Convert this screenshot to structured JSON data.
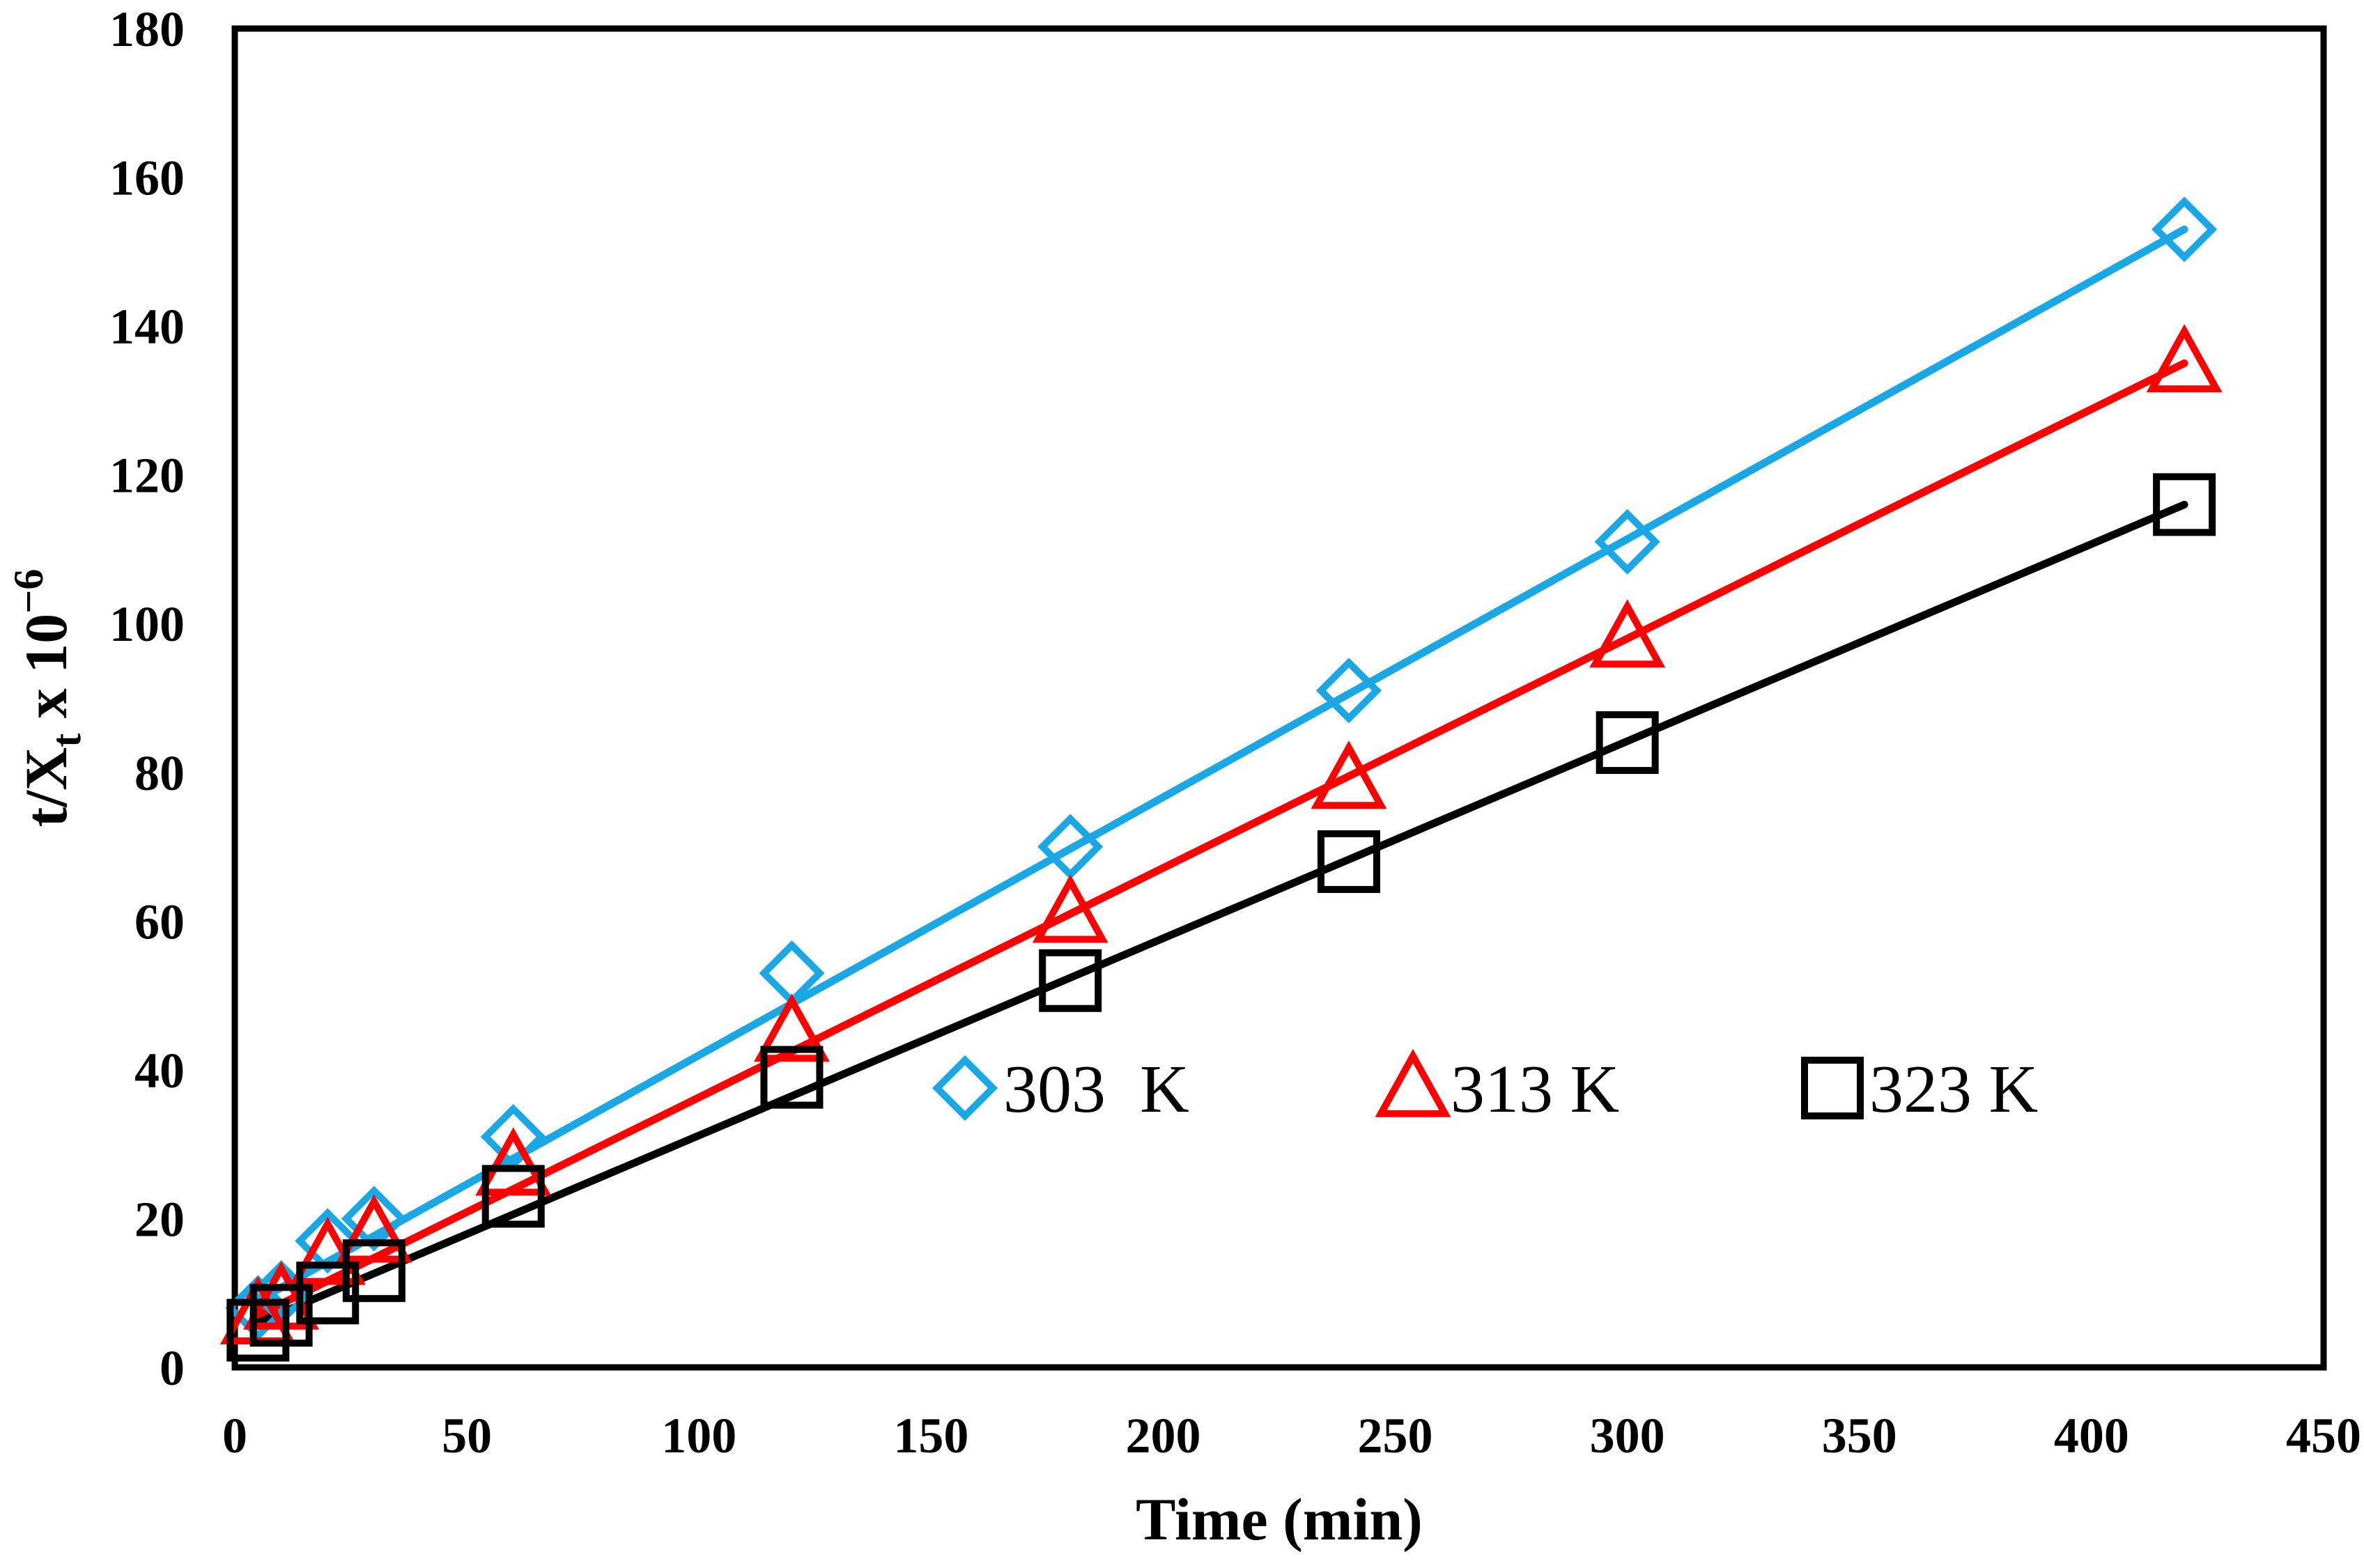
{
  "chart_data": {
    "type": "scatter",
    "title": "",
    "xlabel": "Time (min)",
    "ylabel_parts": {
      "base": "t/X",
      "sub": "t",
      "rest": " x 10",
      "sup": "−6"
    },
    "xlim": [
      0,
      450
    ],
    "ylim": [
      0,
      180
    ],
    "xticks": [
      0,
      50,
      100,
      150,
      200,
      250,
      300,
      350,
      400,
      450
    ],
    "yticks": [
      0,
      20,
      40,
      60,
      80,
      100,
      120,
      140,
      160,
      180
    ],
    "grid": false,
    "legend_position": "inside-lower-middle",
    "series": [
      {
        "name": "303  K",
        "marker": "diamond",
        "color": "#1aa7e6",
        "x": [
          5,
          10,
          20,
          30,
          60,
          120,
          180,
          240,
          300,
          420
        ],
        "y": [
          8,
          10,
          17,
          20,
          31,
          53,
          70,
          91,
          111,
          153
        ],
        "fit": {
          "x": [
            5,
            420
          ],
          "y": [
            9,
            153
          ]
        }
      },
      {
        "name": "313 K",
        "marker": "triangle",
        "color": "#ff0000",
        "x": [
          5,
          10,
          20,
          30,
          60,
          120,
          180,
          240,
          300,
          420
        ],
        "y": [
          7,
          9,
          15,
          18,
          27,
          45,
          61,
          79,
          98,
          135
        ],
        "fit": {
          "x": [
            5,
            420
          ],
          "y": [
            7,
            135
          ]
        }
      },
      {
        "name": "323 K",
        "marker": "square",
        "color": "#000000",
        "x": [
          5,
          10,
          20,
          30,
          60,
          120,
          180,
          240,
          300,
          420
        ],
        "y": [
          5,
          7,
          10,
          13,
          23,
          39,
          52,
          68,
          84,
          116
        ],
        "fit": {
          "x": [
            5,
            420
          ],
          "y": [
            6,
            116
          ]
        }
      }
    ]
  }
}
